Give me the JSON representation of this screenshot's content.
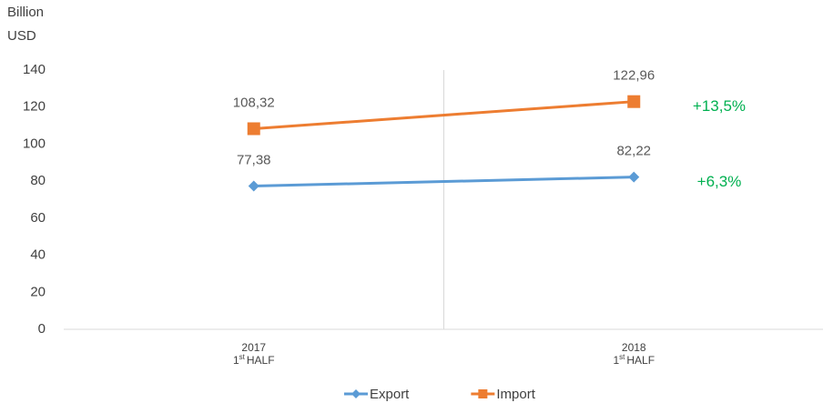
{
  "chart_data": {
    "type": "line",
    "y_label": [
      "Billion",
      "USD"
    ],
    "categories": [
      "2017",
      "2018"
    ],
    "period_label": {
      "ordinal": "1",
      "suffix": "st",
      "text": "HALF"
    },
    "series": [
      {
        "name": "Export",
        "color": "#5b9bd5",
        "marker": "diamond",
        "values": [
          77.38,
          82.22
        ],
        "value_labels": [
          "77,38",
          "82,22"
        ],
        "annotation": "+6,3%"
      },
      {
        "name": "Import",
        "color": "#ed7d31",
        "marker": "square",
        "values": [
          108.32,
          122.96
        ],
        "value_labels": [
          "108,32",
          "122,96"
        ],
        "annotation": "+13,5%"
      }
    ],
    "annotation_color": "#00b050",
    "ylim": [
      0,
      140
    ],
    "yticks": [
      0,
      20,
      40,
      60,
      80,
      100,
      120,
      140
    ],
    "grid": false,
    "legend": "bottom"
  }
}
